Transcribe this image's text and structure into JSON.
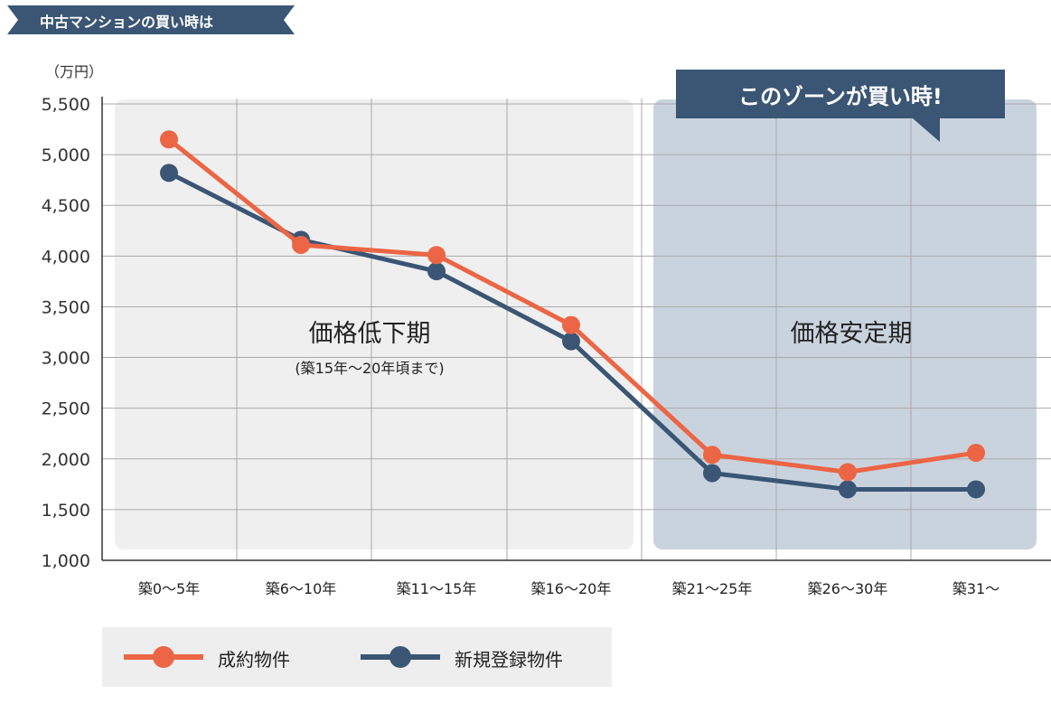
{
  "page": {
    "title": "中古マンションの買い時は",
    "unit": "（万円）",
    "callout": "このゾーンが買い時!"
  },
  "colors": {
    "orange": "#ec6544",
    "navy": "#3a5674",
    "zone_left": "#efefef",
    "zone_right": "#c9d3de",
    "grid": "#aaaaaa"
  },
  "chart_data": {
    "type": "line",
    "categories": [
      "築0〜5年",
      "築6〜10年",
      "築11〜15年",
      "築16〜20年",
      "築21〜25年",
      "築26〜30年",
      "築31〜"
    ],
    "series": [
      {
        "name": "成約物件",
        "color": "#ec6544",
        "values": [
          5150,
          4110,
          4010,
          3320,
          2040,
          1870,
          2060
        ]
      },
      {
        "name": "新規登録物件",
        "color": "#3a5674",
        "values": [
          4820,
          4160,
          3850,
          3160,
          1860,
          1700,
          1700
        ]
      }
    ],
    "ylim": [
      1000,
      5500
    ],
    "yticks": [
      "1,000",
      "1,500",
      "2,000",
      "2,500",
      "3,000",
      "3,500",
      "4,000",
      "4,500",
      "5,000",
      "5,500"
    ],
    "zones": [
      {
        "label": "価格低下期",
        "sublabel": "(築15年〜20年頃まで)"
      },
      {
        "label": "価格安定期",
        "sublabel": ""
      }
    ],
    "legend": [
      "成約物件",
      "新規登録物件"
    ],
    "grid": true
  }
}
